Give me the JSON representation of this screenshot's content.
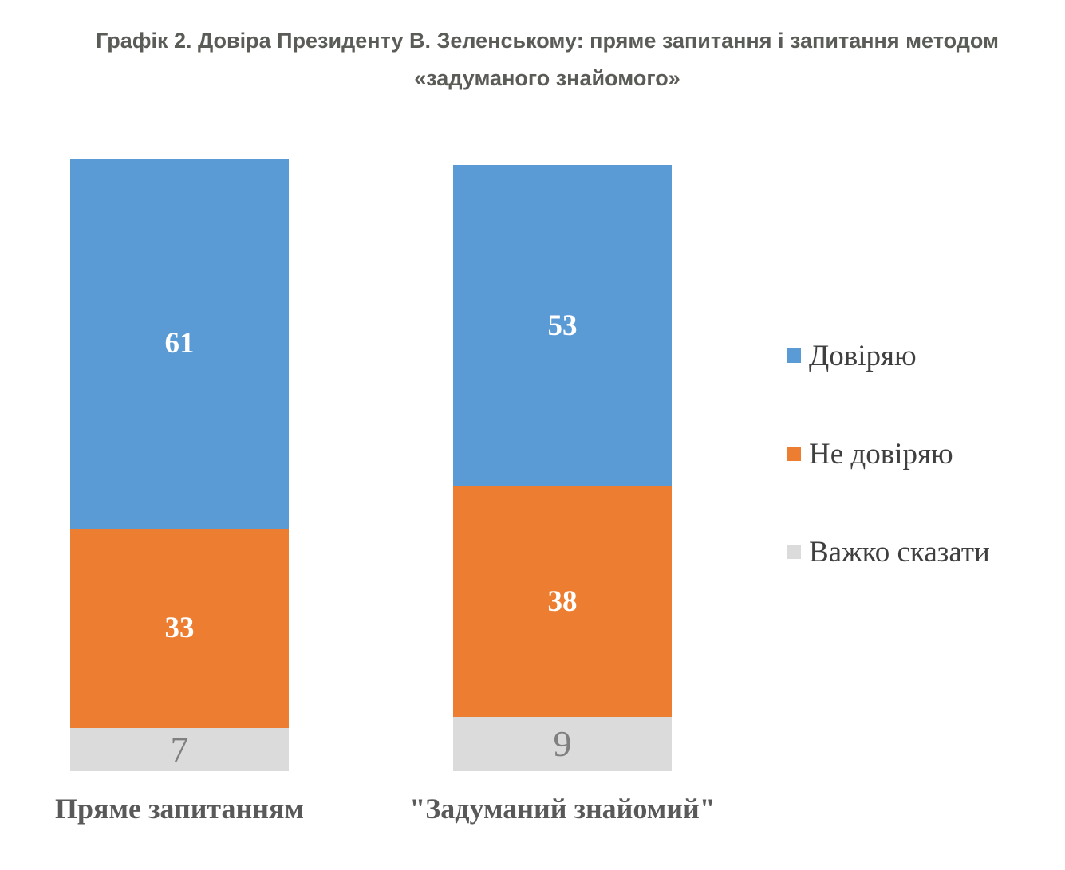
{
  "title": {
    "line1": "Графік 2. Довіра Президенту В. Зеленському: пряме запитання і запитання методом",
    "line2": "«задуманого знайомого»"
  },
  "chart_data": {
    "type": "bar",
    "subtype": "stacked-column",
    "title": "Графік 2. Довіра Президенту В. Зеленському: пряме запитання і запитання методом «задуманого знайомого»",
    "categories": [
      "Пряме запитанням",
      "\"Задуманий знайомий\""
    ],
    "series": [
      {
        "name": "Довіряю",
        "color": "#5B9BD5",
        "label_color": "#FFFFFF",
        "values": [
          61,
          53
        ]
      },
      {
        "name": "Не довіряю",
        "color": "#ED7D31",
        "label_color": "#FFFFFF",
        "values": [
          33,
          38
        ]
      },
      {
        "name": "Важко сказати",
        "color": "#DBDBDB",
        "label_color": "#7F7F7F",
        "values": [
          7,
          9
        ]
      }
    ],
    "legend_position": "right",
    "grid": false,
    "axes_visible": false,
    "value_labels_shown": true
  }
}
